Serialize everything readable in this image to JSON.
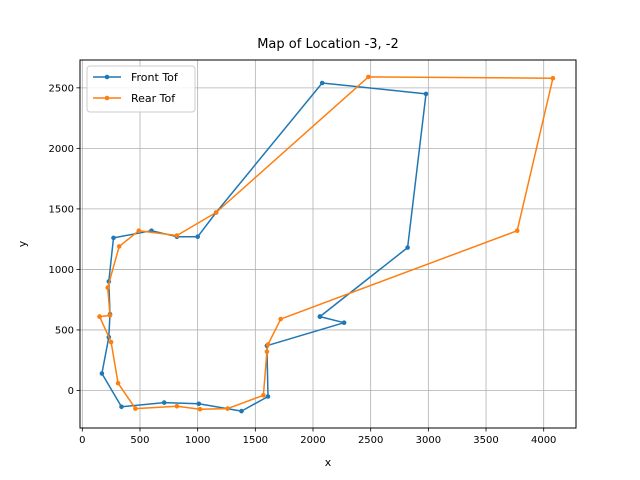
{
  "chart_data": {
    "type": "line",
    "title": "Map of Location -3, -2",
    "xlabel": "x",
    "ylabel": "y",
    "xlim": [
      -20,
      4280
    ],
    "ylim": [
      -310,
      2730
    ],
    "xticks": [
      0,
      500,
      1000,
      1500,
      2000,
      2500,
      3000,
      3500,
      4000
    ],
    "yticks": [
      0,
      500,
      1000,
      1500,
      2000,
      2500
    ],
    "grid": true,
    "legend_position": "upper left",
    "series": [
      {
        "name": "Front Tof",
        "color": "#1f77b4",
        "points": [
          [
            2060,
            610
          ],
          [
            2270,
            560
          ],
          [
            1600,
            370
          ],
          [
            1610,
            -50
          ],
          [
            1380,
            -170
          ],
          [
            1010,
            -110
          ],
          [
            710,
            -100
          ],
          [
            340,
            -135
          ],
          [
            170,
            140
          ],
          [
            230,
            440
          ],
          [
            240,
            630
          ],
          [
            230,
            900
          ],
          [
            270,
            1260
          ],
          [
            600,
            1320
          ],
          [
            820,
            1270
          ],
          [
            1000,
            1270
          ],
          [
            1160,
            1470
          ],
          [
            2080,
            2540
          ],
          [
            2980,
            2450
          ],
          [
            2820,
            1180
          ],
          [
            2060,
            610
          ]
        ]
      },
      {
        "name": "Rear Tof",
        "color": "#ff7f0e",
        "points": [
          [
            150,
            610
          ],
          [
            250,
            400
          ],
          [
            310,
            60
          ],
          [
            460,
            -150
          ],
          [
            820,
            -130
          ],
          [
            1020,
            -155
          ],
          [
            1260,
            -150
          ],
          [
            1570,
            -40
          ],
          [
            1600,
            320
          ],
          [
            1610,
            380
          ],
          [
            1720,
            590
          ],
          [
            3770,
            1320
          ],
          [
            4080,
            2580
          ],
          [
            2480,
            2590
          ],
          [
            1160,
            1470
          ],
          [
            820,
            1280
          ],
          [
            490,
            1320
          ],
          [
            320,
            1190
          ],
          [
            220,
            850
          ],
          [
            240,
            620
          ],
          [
            150,
            610
          ]
        ]
      }
    ]
  }
}
